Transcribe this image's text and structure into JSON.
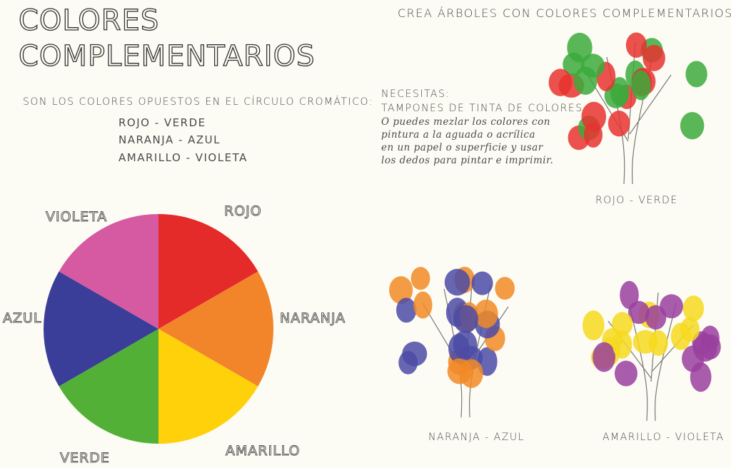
{
  "title": {
    "line1": "COLORES",
    "line2": "COMPLEMENTARIOS"
  },
  "intro": "SON LOS COLORES OPUESTOS EN EL CÍRCULO CROMÁTICO:",
  "pairs": [
    "ROJO - VERDE",
    "NARANJA - AZUL",
    "AMARILLO - VIOLETA"
  ],
  "wheel": {
    "labels": [
      "ROJO",
      "NARANJA",
      "AMARILLO",
      "VERDE",
      "AZUL",
      "VIOLETA"
    ]
  },
  "instruction": "CREA ÁRBOLES CON COLORES COMPLEMENTARIOS.",
  "materials": {
    "heading": "NECESITAS:",
    "item": "TAMPONES DE TINTA DE COLORES",
    "note": [
      "O puedes mezlar los colores con",
      "pintura a la aguada o acrílica",
      "en un papel o superficie y usar",
      "los dedos para pintar e imprimir."
    ]
  },
  "trees": [
    "ROJO - VERDE",
    "NARANJA - AZUL",
    "AMARILLO - VIOLETA"
  ]
}
